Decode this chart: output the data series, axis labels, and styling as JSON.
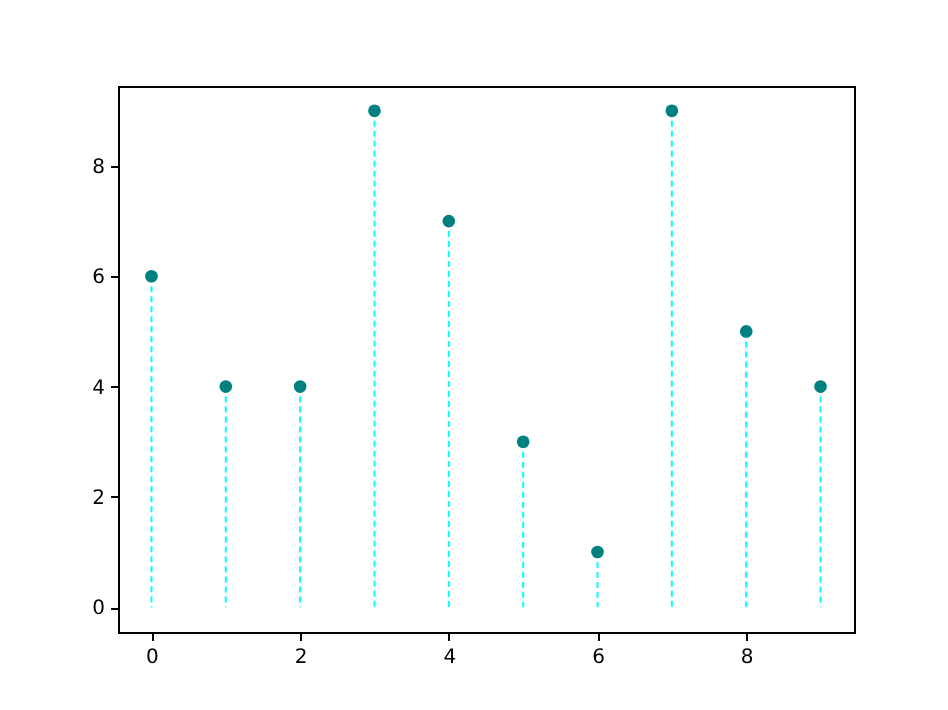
{
  "chart_data": {
    "type": "lollipop",
    "x": [
      0,
      1,
      2,
      3,
      4,
      5,
      6,
      7,
      8,
      9
    ],
    "series": [
      {
        "color": "#008080",
        "values": [
          6,
          4,
          4,
          9,
          7,
          3,
          1,
          9,
          5,
          4
        ]
      }
    ],
    "xlim": [
      -0.45,
      9.45
    ],
    "xticks": [
      0,
      2,
      4,
      6,
      8
    ],
    "ylim": [
      -0.45,
      9.45
    ],
    "yticks": [
      0,
      2,
      4,
      6,
      8
    ],
    "line_style": "dashed",
    "marker": "circle",
    "grid": false
  }
}
